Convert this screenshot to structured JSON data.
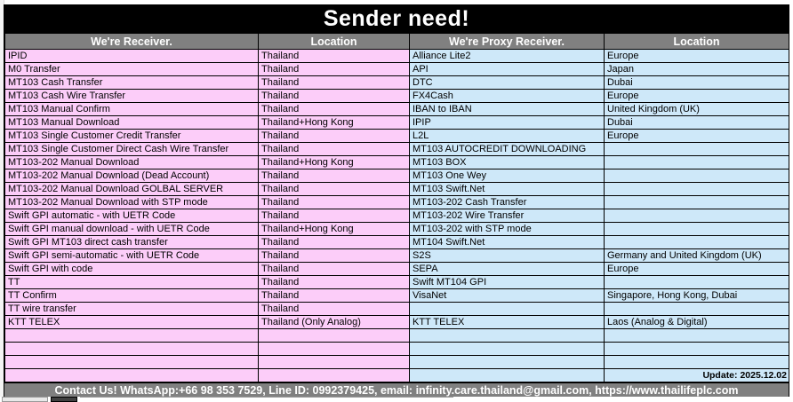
{
  "title": "Sender need!",
  "table": {
    "columns": [
      "We're Receiver.",
      "Location",
      "We're Proxy Receiver.",
      "Location"
    ],
    "update_label": "Update: 2025.12.02",
    "rows": [
      [
        "IPID",
        "Thailand",
        "Alliance Lite2",
        "Europe"
      ],
      [
        "M0 Transfer",
        "Thailand",
        "API",
        "Japan"
      ],
      [
        "MT103 Cash Transfer",
        "Thailand",
        "DTC",
        "Dubai"
      ],
      [
        "MT103 Cash Wire Transfer",
        "Thailand",
        "FX4Cash",
        "Europe"
      ],
      [
        "MT103 Manual Confirm",
        "Thailand",
        "IBAN to IBAN",
        "United Kingdom (UK)"
      ],
      [
        "MT103 Manual Download",
        "Thailand+Hong Kong",
        "IPIP",
        "Dubai"
      ],
      [
        "MT103 Single Customer Credit Transfer",
        "Thailand",
        "L2L",
        "Europe"
      ],
      [
        "MT103 Single Customer Direct Cash Wire Transfer",
        "Thailand",
        "MT103 AUTOCREDIT DOWNLOADING",
        ""
      ],
      [
        "MT103-202 Manual Download",
        "Thailand+Hong Kong",
        "MT103 BOX",
        ""
      ],
      [
        "MT103-202 Manual Download (Dead Account)",
        "Thailand",
        "MT103 One Wey",
        ""
      ],
      [
        "MT103-202 Manual Download GOLBAL SERVER",
        "Thailand",
        "MT103 Swift.Net",
        ""
      ],
      [
        "MT103-202 Manual Download with STP mode",
        "Thailand",
        "MT103-202 Cash Transfer",
        ""
      ],
      [
        "Swift GPI automatic - with UETR Code",
        "Thailand",
        "MT103-202 Wire Transfer",
        ""
      ],
      [
        "Swift GPI manual download - with UETR Code",
        "Thailand+Hong Kong",
        "MT103-202 with STP mode",
        ""
      ],
      [
        "Swift GPI MT103 direct cash transfer",
        "Thailand",
        "MT104 Swift.Net",
        ""
      ],
      [
        "Swift GPI semi-automatic - with UETR Code",
        "Thailand",
        "S2S",
        "Germany and United Kingdom (UK)"
      ],
      [
        "Swift GPI with code",
        "Thailand",
        "SEPA",
        "Europe"
      ],
      [
        "TT",
        "Thailand",
        "Swift MT104 GPI",
        ""
      ],
      [
        "TT Confirm",
        "Thailand",
        "VisaNet",
        "Singapore, Hong Kong, Dubai"
      ],
      [
        "TT wire transfer",
        "Thailand",
        "",
        ""
      ],
      [
        "KTT TELEX",
        "Thailand (Only Analog)",
        "KTT TELEX",
        "Laos (Analog & Digital)"
      ],
      [
        "",
        "",
        "",
        ""
      ],
      [
        "",
        "",
        "",
        ""
      ],
      [
        "",
        "",
        "",
        ""
      ],
      [
        "",
        "",
        "",
        "Update: 2025.12.02"
      ]
    ]
  },
  "footer": {
    "text": "Contact Us! WhatsApp:+66 98 353 7529, Line ID: 0992379425, email: infinity.care.thailand@gmail.com,  https://www.thailifeplc.com"
  },
  "colors": {
    "title_bg": "#000000",
    "header_bg": "#808080",
    "receiver_bg": "#FCCDF9",
    "proxy_bg": "#CEE8F9",
    "footer_bg": "#808080"
  }
}
